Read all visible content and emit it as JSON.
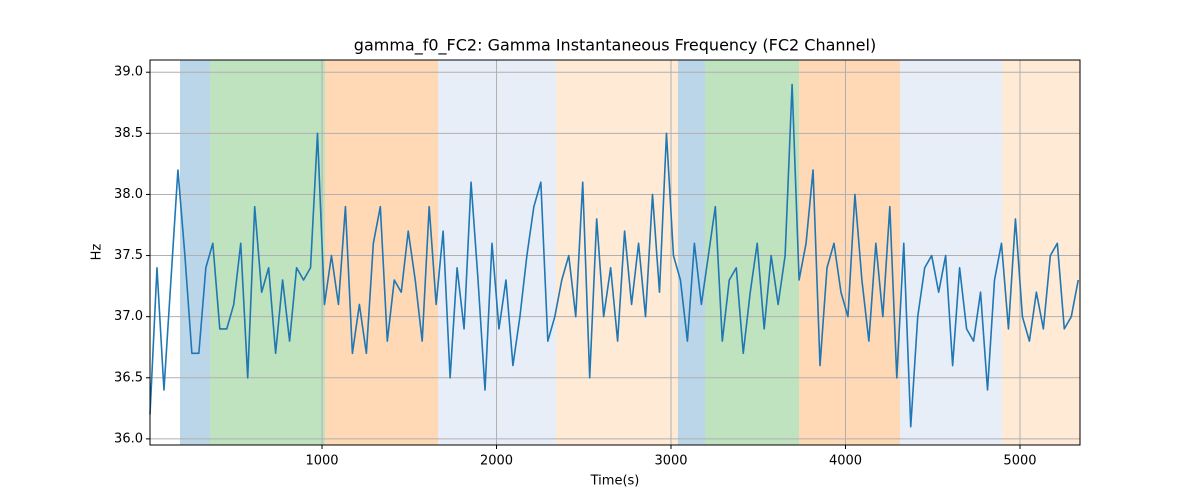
{
  "chart_data": {
    "type": "line",
    "title": "gamma_f0_FC2: Gamma Instantaneous Frequency (FC2 Channel)",
    "x_label": "Time(s)",
    "y_label": "Hz",
    "xlim": [
      14,
      5344
    ],
    "ylim": [
      35.95,
      39.1
    ],
    "xticks": [
      1000,
      2000,
      3000,
      4000,
      5000
    ],
    "yticks": [
      {
        "value": 36.0,
        "label": "36.0"
      },
      {
        "value": 36.5,
        "label": "36.5"
      },
      {
        "value": 37.0,
        "label": "37.0"
      },
      {
        "value": 37.5,
        "label": "37.5"
      },
      {
        "value": 38.0,
        "label": "38.0"
      },
      {
        "value": 38.5,
        "label": "38.5"
      },
      {
        "value": 39.0,
        "label": "39.0"
      }
    ],
    "grid": true,
    "spans": [
      {
        "start": 186,
        "end": 358,
        "color": "#1f77b4"
      },
      {
        "start": 358,
        "end": 1017,
        "color": "#2ca02c"
      },
      {
        "start": 1017,
        "end": 1665,
        "color": "#ff7f0e"
      },
      {
        "start": 1665,
        "end": 2341,
        "color": "#aec7e8"
      },
      {
        "start": 2341,
        "end": 3040,
        "color": "#ffbb78"
      },
      {
        "start": 3040,
        "end": 3195,
        "color": "#1f77b4"
      },
      {
        "start": 3195,
        "end": 3734,
        "color": "#2ca02c"
      },
      {
        "start": 3734,
        "end": 4313,
        "color": "#ff7f0e"
      },
      {
        "start": 4313,
        "end": 4897,
        "color": "#aec7e8"
      },
      {
        "start": 4897,
        "end": 5344,
        "color": "#ffbb78"
      }
    ],
    "x": [
      14,
      54,
      94,
      134,
      174,
      214,
      254,
      294,
      334,
      374,
      414,
      454,
      494,
      534,
      574,
      614,
      654,
      694,
      734,
      774,
      814,
      854,
      894,
      934,
      974,
      1014,
      1054,
      1094,
      1134,
      1174,
      1214,
      1254,
      1294,
      1334,
      1374,
      1414,
      1454,
      1494,
      1534,
      1574,
      1614,
      1654,
      1694,
      1734,
      1774,
      1814,
      1854,
      1894,
      1934,
      1974,
      2014,
      2054,
      2094,
      2134,
      2174,
      2214,
      2254,
      2294,
      2334,
      2374,
      2414,
      2454,
      2494,
      2534,
      2574,
      2614,
      2654,
      2694,
      2734,
      2774,
      2814,
      2854,
      2894,
      2934,
      2974,
      3014,
      3054,
      3094,
      3134,
      3174,
      3214,
      3254,
      3294,
      3334,
      3374,
      3414,
      3454,
      3494,
      3534,
      3574,
      3614,
      3654,
      3694,
      3734,
      3774,
      3814,
      3854,
      3894,
      3934,
      3974,
      4014,
      4054,
      4094,
      4134,
      4174,
      4214,
      4254,
      4294,
      4334,
      4374,
      4414,
      4454,
      4494,
      4534,
      4574,
      4614,
      4654,
      4694,
      4734,
      4774,
      4814,
      4854,
      4894,
      4934,
      4974,
      5014,
      5054,
      5094,
      5134,
      5174,
      5214,
      5254,
      5294,
      5334
    ],
    "series": [
      {
        "color": "#1f77b4",
        "values": [
          36.2,
          37.4,
          36.4,
          37.3,
          38.2,
          37.5,
          36.7,
          36.7,
          37.4,
          37.6,
          36.9,
          36.9,
          37.1,
          37.6,
          36.5,
          37.9,
          37.2,
          37.4,
          36.7,
          37.3,
          36.8,
          37.4,
          37.3,
          37.4,
          38.5,
          37.1,
          37.5,
          37.1,
          37.9,
          36.7,
          37.1,
          36.7,
          37.6,
          37.9,
          36.8,
          37.3,
          37.2,
          37.7,
          37.3,
          36.8,
          37.9,
          37.1,
          37.7,
          36.5,
          37.4,
          36.9,
          38.1,
          37.3,
          36.4,
          37.6,
          36.9,
          37.3,
          36.6,
          37.0,
          37.5,
          37.9,
          38.1,
          36.8,
          37.0,
          37.3,
          37.5,
          37.0,
          38.1,
          36.5,
          37.8,
          37.0,
          37.4,
          36.8,
          37.7,
          37.1,
          37.6,
          37.0,
          38.0,
          37.2,
          38.5,
          37.5,
          37.3,
          36.8,
          37.6,
          37.1,
          37.5,
          37.9,
          36.8,
          37.3,
          37.4,
          36.7,
          37.2,
          37.6,
          36.9,
          37.5,
          37.1,
          37.5,
          38.9,
          37.3,
          37.6,
          38.2,
          36.6,
          37.4,
          37.6,
          37.2,
          37.0,
          38.0,
          37.3,
          36.8,
          37.6,
          37.0,
          37.9,
          36.5,
          37.6,
          36.1,
          37.0,
          37.4,
          37.5,
          37.2,
          37.5,
          36.6,
          37.4,
          36.9,
          36.8,
          37.2,
          36.4,
          37.3,
          37.6,
          36.9,
          37.8,
          37.0,
          36.8,
          37.2,
          36.9,
          37.5,
          37.6,
          36.9,
          37.0,
          37.3
        ]
      }
    ]
  }
}
